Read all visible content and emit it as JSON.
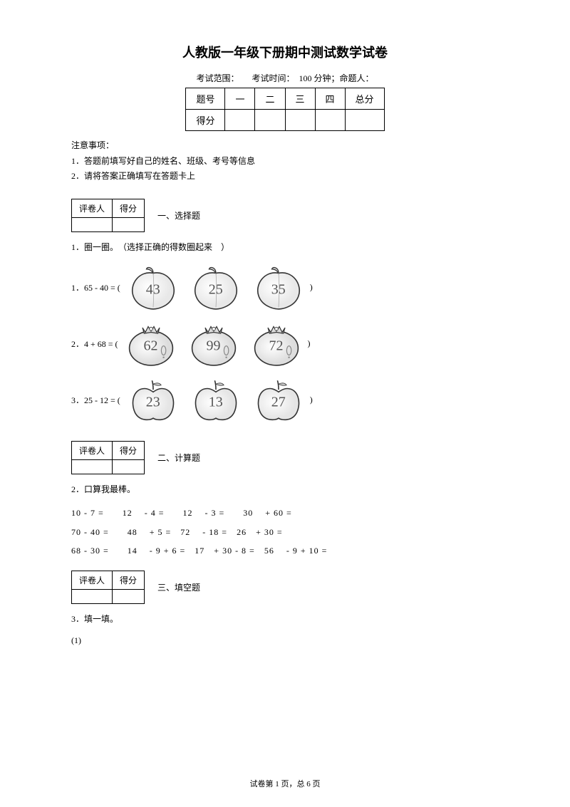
{
  "title": "人教版一年级下册期中测试数学试卷",
  "exam_info": "考试范围：　　考试时间：　100 分钟；命题人：",
  "score_table": {
    "headers": [
      "题号",
      "一",
      "二",
      "三",
      "四",
      "总分"
    ],
    "row_label": "得分"
  },
  "notice": {
    "heading": "注意事项：",
    "line1": "1．答题前填写好自己的姓名、班级、考号等信息",
    "line2": "2．请将答案正确填写在答题卡上"
  },
  "small_table": {
    "h1": "评卷人",
    "h2": "得分"
  },
  "sections": {
    "s1": "一、选择题",
    "s2": "二、计算题",
    "s3": "三、填空题"
  },
  "q1": {
    "title": "1．圈一圈。　（选择正确的得数圈起来　）",
    "rows": [
      {
        "label": "1．65 - 40 = (",
        "type": "peach",
        "values": [
          "43",
          "25",
          "35"
        ]
      },
      {
        "label": "2．4 + 68 = (",
        "type": "tomato",
        "values": [
          "62",
          "99",
          "72"
        ]
      },
      {
        "label": "3．25 - 12 = (",
        "type": "apple",
        "values": [
          "23",
          "13",
          "27"
        ]
      }
    ]
  },
  "q2": {
    "title": "2．口算我最棒。",
    "line1": "10 - 7 =　　12　 - 4 =　　12　 - 3 =　　30　 + 60 =",
    "line2": "70 - 40 =　　48　 + 5 =　72　 - 18 =　26　+ 30 =",
    "line3": "68 - 30 =　　14　 - 9 + 6 =　17　+ 30 - 8 =　56　 - 9 + 10 ="
  },
  "q3": {
    "title": "3．填一填。",
    "sub": "(1)"
  },
  "footer": "试卷第 1 页，总 6 页",
  "colors": {
    "stroke": "#333",
    "fill_light": "#f5f5f5",
    "fill_med": "#ddd"
  }
}
